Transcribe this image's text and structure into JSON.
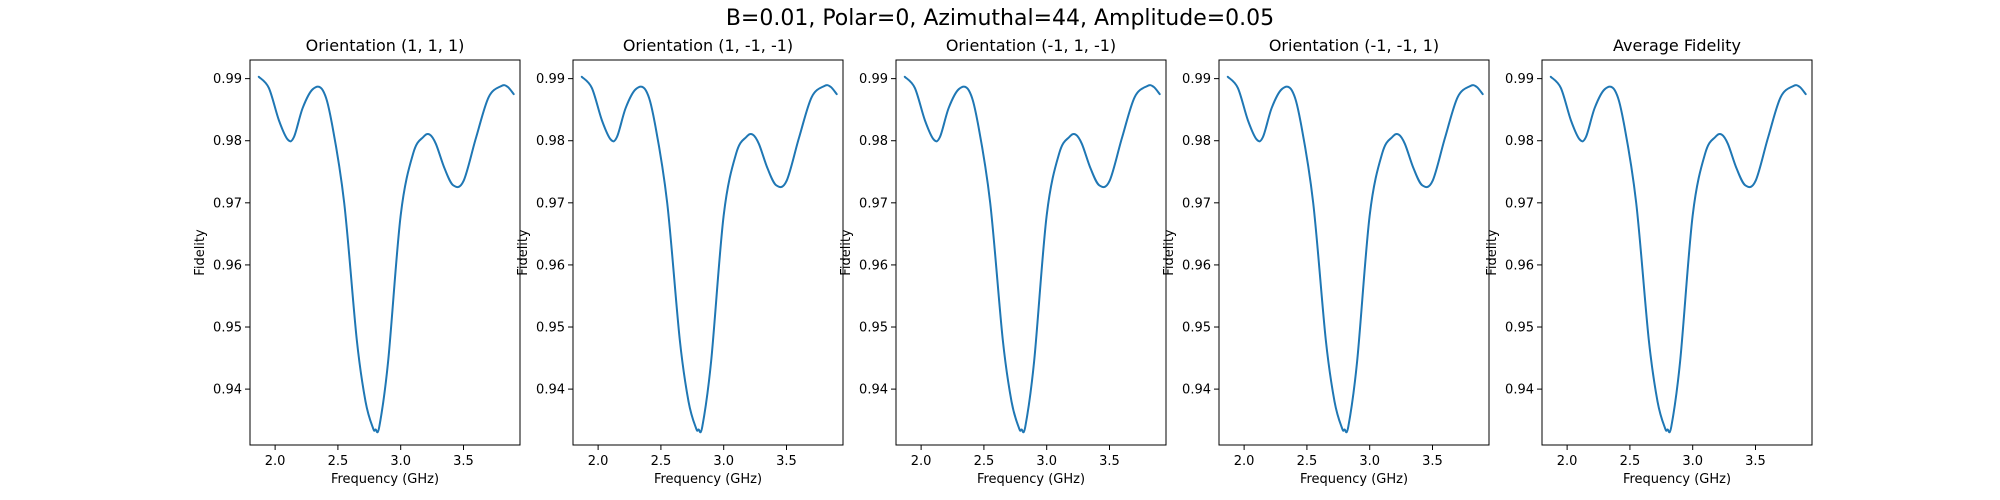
{
  "figure": {
    "title": "B=0.01, Polar=0, Azimuthal=44, Amplitude=0.05"
  },
  "colors": {
    "line": "#1f77b4",
    "axes": "#000000",
    "background": "#ffffff"
  },
  "chart_data": [
    {
      "type": "line",
      "title": "Orientation (1, 1, 1)",
      "xlabel": "Frequency (GHz)",
      "ylabel": "Fidelity",
      "xlim": [
        1.8,
        3.95
      ],
      "ylim": [
        0.931,
        0.993
      ],
      "xticks": [
        2.0,
        2.5,
        3.0,
        3.5
      ],
      "xtick_labels": [
        "2.0",
        "2.5",
        "3.0",
        "3.5"
      ],
      "yticks": [
        0.94,
        0.95,
        0.96,
        0.97,
        0.98,
        0.99
      ],
      "ytick_labels": [
        "0.94",
        "0.95",
        "0.96",
        "0.97",
        "0.98",
        "0.99"
      ],
      "grid": false,
      "x": [
        1.87,
        1.95,
        2.03,
        2.1,
        2.15,
        2.22,
        2.3,
        2.38,
        2.45,
        2.55,
        2.65,
        2.72,
        2.78,
        2.8,
        2.83,
        2.9,
        3.0,
        3.1,
        3.18,
        3.23,
        3.28,
        3.35,
        3.42,
        3.5,
        3.6,
        3.7,
        3.8,
        3.85,
        3.9
      ],
      "values": [
        0.9903,
        0.9885,
        0.9833,
        0.9802,
        0.9806,
        0.9853,
        0.9883,
        0.9881,
        0.983,
        0.97,
        0.948,
        0.938,
        0.9337,
        0.9335,
        0.934,
        0.9445,
        0.968,
        0.978,
        0.9806,
        0.981,
        0.9795,
        0.9755,
        0.9728,
        0.9735,
        0.9805,
        0.987,
        0.9888,
        0.9887,
        0.9875
      ]
    },
    {
      "type": "line",
      "title": "Orientation (1, -1, -1)",
      "xlabel": "Frequency (GHz)",
      "ylabel": "Fidelity",
      "xlim": [
        1.8,
        3.95
      ],
      "ylim": [
        0.931,
        0.993
      ],
      "xticks": [
        2.0,
        2.5,
        3.0,
        3.5
      ],
      "xtick_labels": [
        "2.0",
        "2.5",
        "3.0",
        "3.5"
      ],
      "yticks": [
        0.94,
        0.95,
        0.96,
        0.97,
        0.98,
        0.99
      ],
      "ytick_labels": [
        "0.94",
        "0.95",
        "0.96",
        "0.97",
        "0.98",
        "0.99"
      ],
      "grid": false,
      "x": [
        1.87,
        1.95,
        2.03,
        2.1,
        2.15,
        2.22,
        2.3,
        2.38,
        2.45,
        2.55,
        2.65,
        2.72,
        2.78,
        2.8,
        2.83,
        2.9,
        3.0,
        3.1,
        3.18,
        3.23,
        3.28,
        3.35,
        3.42,
        3.5,
        3.6,
        3.7,
        3.8,
        3.85,
        3.9
      ],
      "values": [
        0.9903,
        0.9885,
        0.9833,
        0.9802,
        0.9806,
        0.9853,
        0.9883,
        0.9881,
        0.983,
        0.97,
        0.948,
        0.938,
        0.9337,
        0.9335,
        0.934,
        0.9445,
        0.968,
        0.978,
        0.9806,
        0.981,
        0.9795,
        0.9755,
        0.9728,
        0.9735,
        0.9805,
        0.987,
        0.9888,
        0.9887,
        0.9875
      ]
    },
    {
      "type": "line",
      "title": "Orientation (-1, 1, -1)",
      "xlabel": "Frequency (GHz)",
      "ylabel": "Fidelity",
      "xlim": [
        1.8,
        3.95
      ],
      "ylim": [
        0.931,
        0.993
      ],
      "xticks": [
        2.0,
        2.5,
        3.0,
        3.5
      ],
      "xtick_labels": [
        "2.0",
        "2.5",
        "3.0",
        "3.5"
      ],
      "yticks": [
        0.94,
        0.95,
        0.96,
        0.97,
        0.98,
        0.99
      ],
      "ytick_labels": [
        "0.94",
        "0.95",
        "0.96",
        "0.97",
        "0.98",
        "0.99"
      ],
      "grid": false,
      "x": [
        1.87,
        1.95,
        2.03,
        2.1,
        2.15,
        2.22,
        2.3,
        2.38,
        2.45,
        2.55,
        2.65,
        2.72,
        2.78,
        2.8,
        2.83,
        2.9,
        3.0,
        3.1,
        3.18,
        3.23,
        3.28,
        3.35,
        3.42,
        3.5,
        3.6,
        3.7,
        3.8,
        3.85,
        3.9
      ],
      "values": [
        0.9903,
        0.9885,
        0.9833,
        0.9802,
        0.9806,
        0.9853,
        0.9883,
        0.9881,
        0.983,
        0.97,
        0.948,
        0.938,
        0.9337,
        0.9335,
        0.934,
        0.9445,
        0.968,
        0.978,
        0.9806,
        0.981,
        0.9795,
        0.9755,
        0.9728,
        0.9735,
        0.9805,
        0.987,
        0.9888,
        0.9887,
        0.9875
      ]
    },
    {
      "type": "line",
      "title": "Orientation (-1, -1, 1)",
      "xlabel": "Frequency (GHz)",
      "ylabel": "Fidelity",
      "xlim": [
        1.8,
        3.95
      ],
      "ylim": [
        0.931,
        0.993
      ],
      "xticks": [
        2.0,
        2.5,
        3.0,
        3.5
      ],
      "xtick_labels": [
        "2.0",
        "2.5",
        "3.0",
        "3.5"
      ],
      "yticks": [
        0.94,
        0.95,
        0.96,
        0.97,
        0.98,
        0.99
      ],
      "ytick_labels": [
        "0.94",
        "0.95",
        "0.96",
        "0.97",
        "0.98",
        "0.99"
      ],
      "grid": false,
      "x": [
        1.87,
        1.95,
        2.03,
        2.1,
        2.15,
        2.22,
        2.3,
        2.38,
        2.45,
        2.55,
        2.65,
        2.72,
        2.78,
        2.8,
        2.83,
        2.9,
        3.0,
        3.1,
        3.18,
        3.23,
        3.28,
        3.35,
        3.42,
        3.5,
        3.6,
        3.7,
        3.8,
        3.85,
        3.9
      ],
      "values": [
        0.9903,
        0.9885,
        0.9833,
        0.9802,
        0.9806,
        0.9853,
        0.9883,
        0.9881,
        0.983,
        0.97,
        0.948,
        0.938,
        0.9337,
        0.9335,
        0.934,
        0.9445,
        0.968,
        0.978,
        0.9806,
        0.981,
        0.9795,
        0.9755,
        0.9728,
        0.9735,
        0.9805,
        0.987,
        0.9888,
        0.9887,
        0.9875
      ]
    },
    {
      "type": "line",
      "title": "Average Fidelity",
      "xlabel": "Frequency (GHz)",
      "ylabel": "Fidelity",
      "xlim": [
        1.8,
        3.95
      ],
      "ylim": [
        0.931,
        0.993
      ],
      "xticks": [
        2.0,
        2.5,
        3.0,
        3.5
      ],
      "xtick_labels": [
        "2.0",
        "2.5",
        "3.0",
        "3.5"
      ],
      "yticks": [
        0.94,
        0.95,
        0.96,
        0.97,
        0.98,
        0.99
      ],
      "ytick_labels": [
        "0.94",
        "0.95",
        "0.96",
        "0.97",
        "0.98",
        "0.99"
      ],
      "grid": false,
      "x": [
        1.87,
        1.95,
        2.03,
        2.1,
        2.15,
        2.22,
        2.3,
        2.38,
        2.45,
        2.55,
        2.65,
        2.72,
        2.78,
        2.8,
        2.83,
        2.9,
        3.0,
        3.1,
        3.18,
        3.23,
        3.28,
        3.35,
        3.42,
        3.5,
        3.6,
        3.7,
        3.8,
        3.85,
        3.9
      ],
      "values": [
        0.9903,
        0.9885,
        0.9833,
        0.9802,
        0.9806,
        0.9853,
        0.9883,
        0.9881,
        0.983,
        0.97,
        0.948,
        0.938,
        0.9337,
        0.9335,
        0.934,
        0.9445,
        0.968,
        0.978,
        0.9806,
        0.981,
        0.9795,
        0.9755,
        0.9728,
        0.9735,
        0.9805,
        0.987,
        0.9888,
        0.9887,
        0.9875
      ]
    }
  ]
}
